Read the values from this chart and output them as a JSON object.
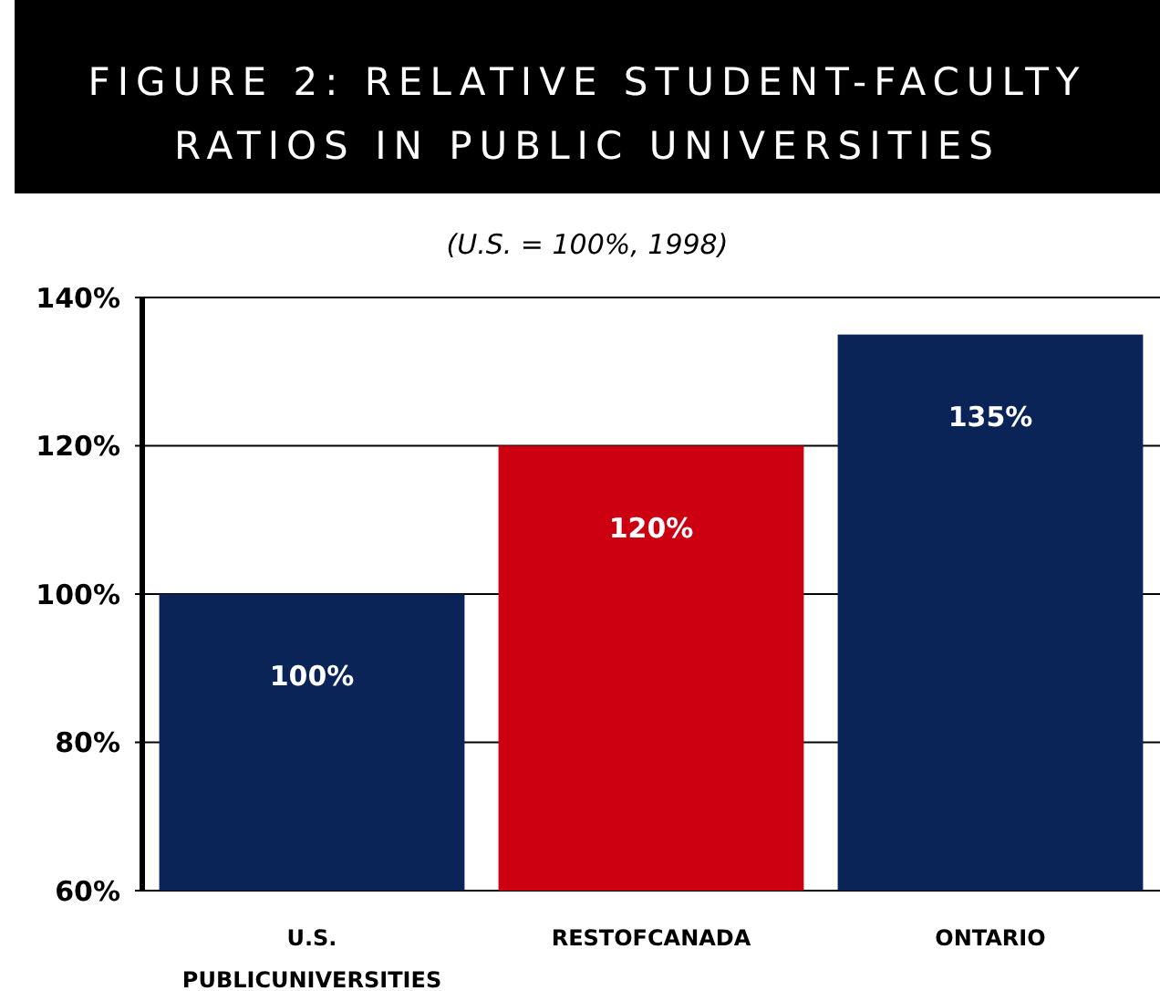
{
  "chart_data": {
    "type": "bar",
    "title": "FIGURE 2: RELATIVE STUDENT-FACULTY RATIOS IN PUBLIC UNIVERSITIES",
    "subtitle": "(U.S. = 100%, 1998)",
    "categories": [
      "U.S. PUBLICUNIVERSITIES",
      "RESTOFCANADA",
      "ONTARIO"
    ],
    "values": [
      100,
      120,
      135
    ],
    "colors": [
      "#0a2458",
      "#cc0010",
      "#0a2458"
    ],
    "value_labels": [
      "100%",
      "120%",
      "135%"
    ],
    "ylim": [
      60,
      140
    ],
    "yticks": [
      {
        "value": 60,
        "label": "60%"
      },
      {
        "value": 80,
        "label": "80%"
      },
      {
        "value": 100,
        "label": "100%"
      },
      {
        "value": 120,
        "label": "120%"
      },
      {
        "value": 140,
        "label": "140%"
      }
    ],
    "grid": "y"
  }
}
